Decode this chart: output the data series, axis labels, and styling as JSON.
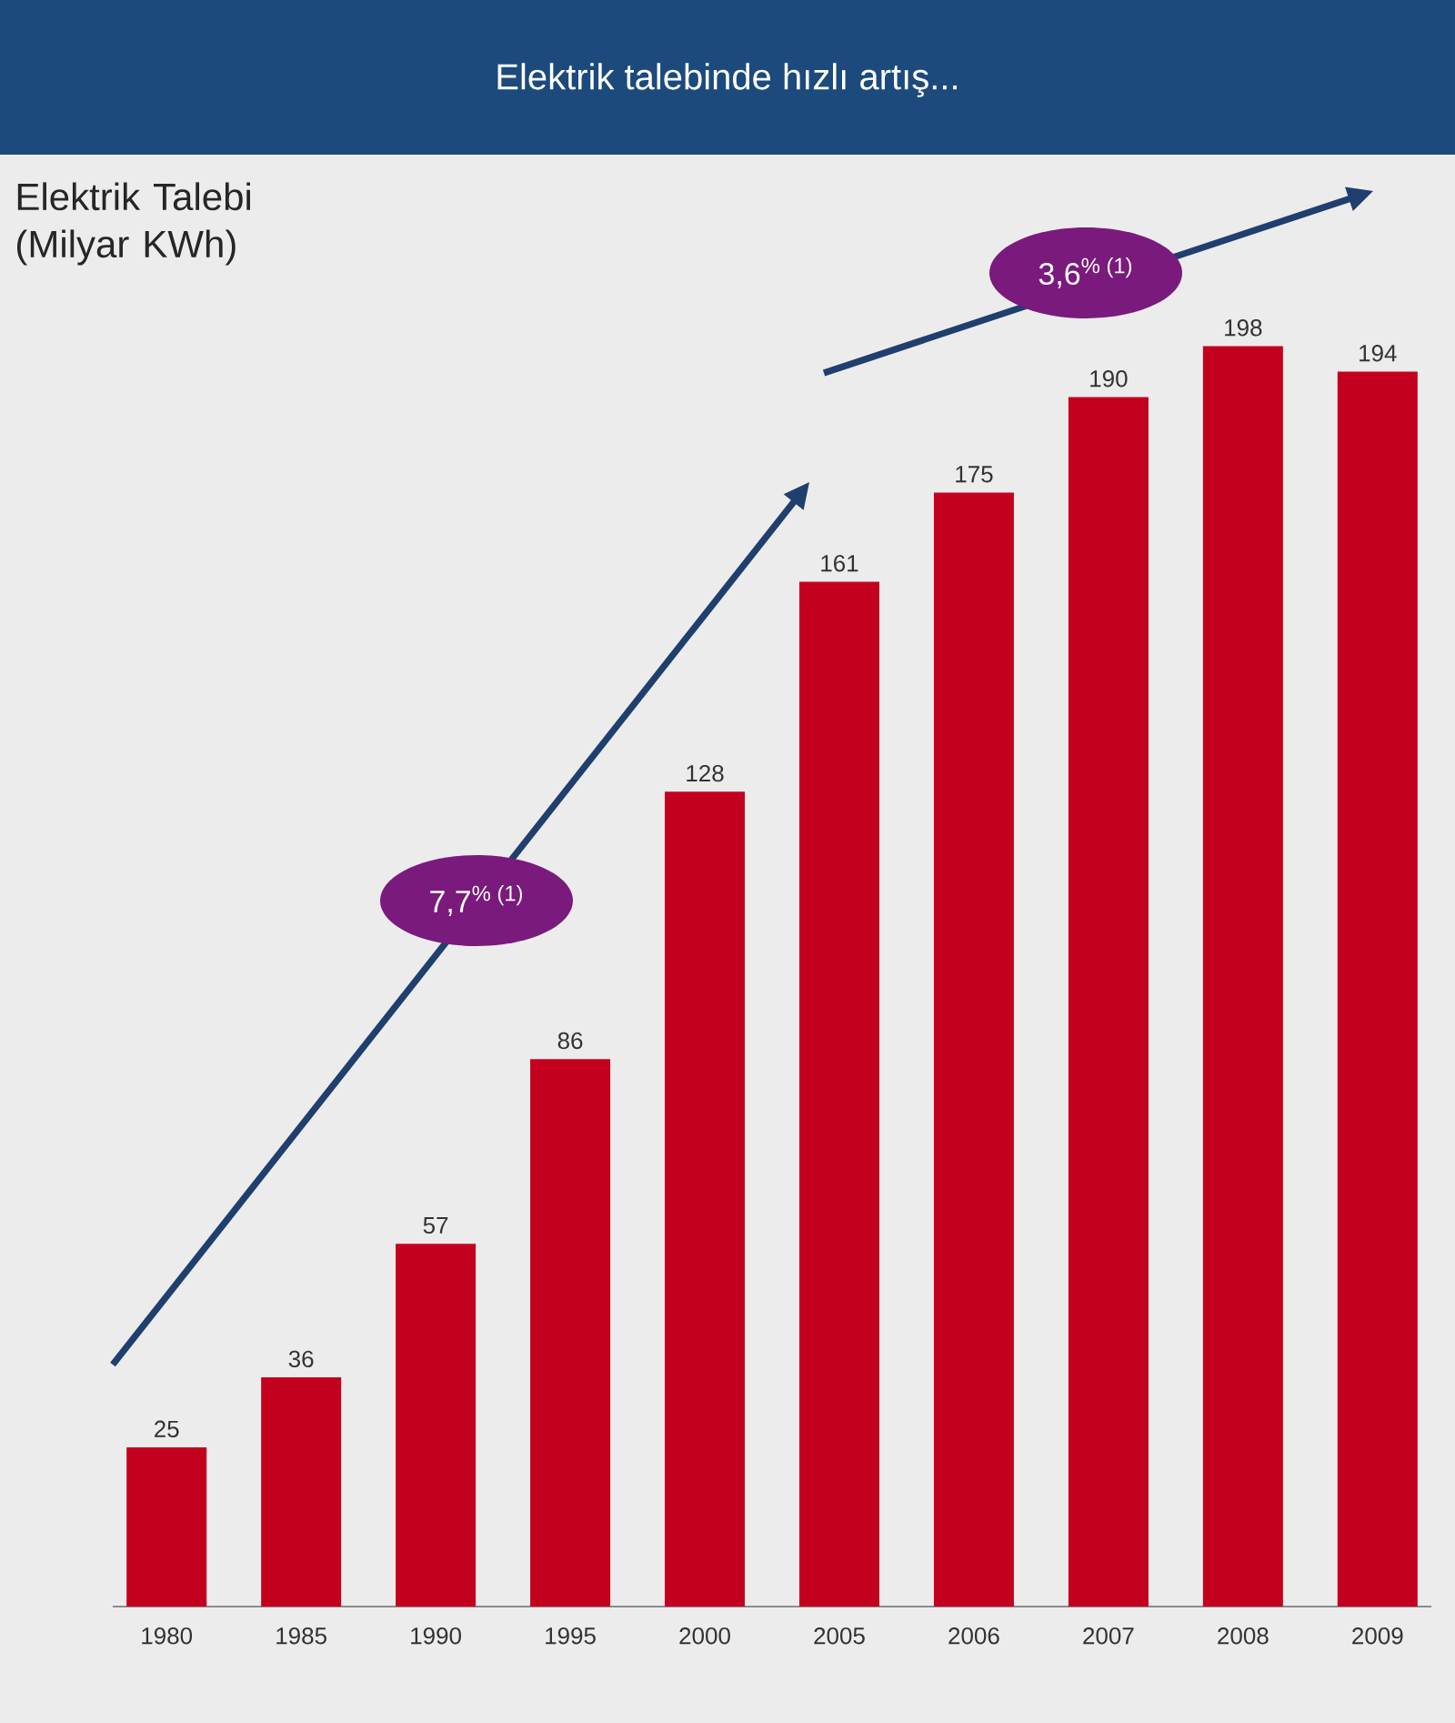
{
  "chart_data": {
    "type": "bar",
    "title": "Elektrik talebinde hızlı artış...",
    "ylabel": "Elektrik Talebi (Milyar KWh)",
    "categories": [
      "1980",
      "1985",
      "1990",
      "1995",
      "2000",
      "2005",
      "2006",
      "2007",
      "2008",
      "2009"
    ],
    "values": [
      25,
      36,
      57,
      86,
      128,
      161,
      175,
      190,
      198,
      194
    ],
    "color": "#c4001f",
    "data_labels": true,
    "annotations": [
      "7,7$^{% (1)}$",
      "3,6$^{% (1)}$"
    ]
  }
}
